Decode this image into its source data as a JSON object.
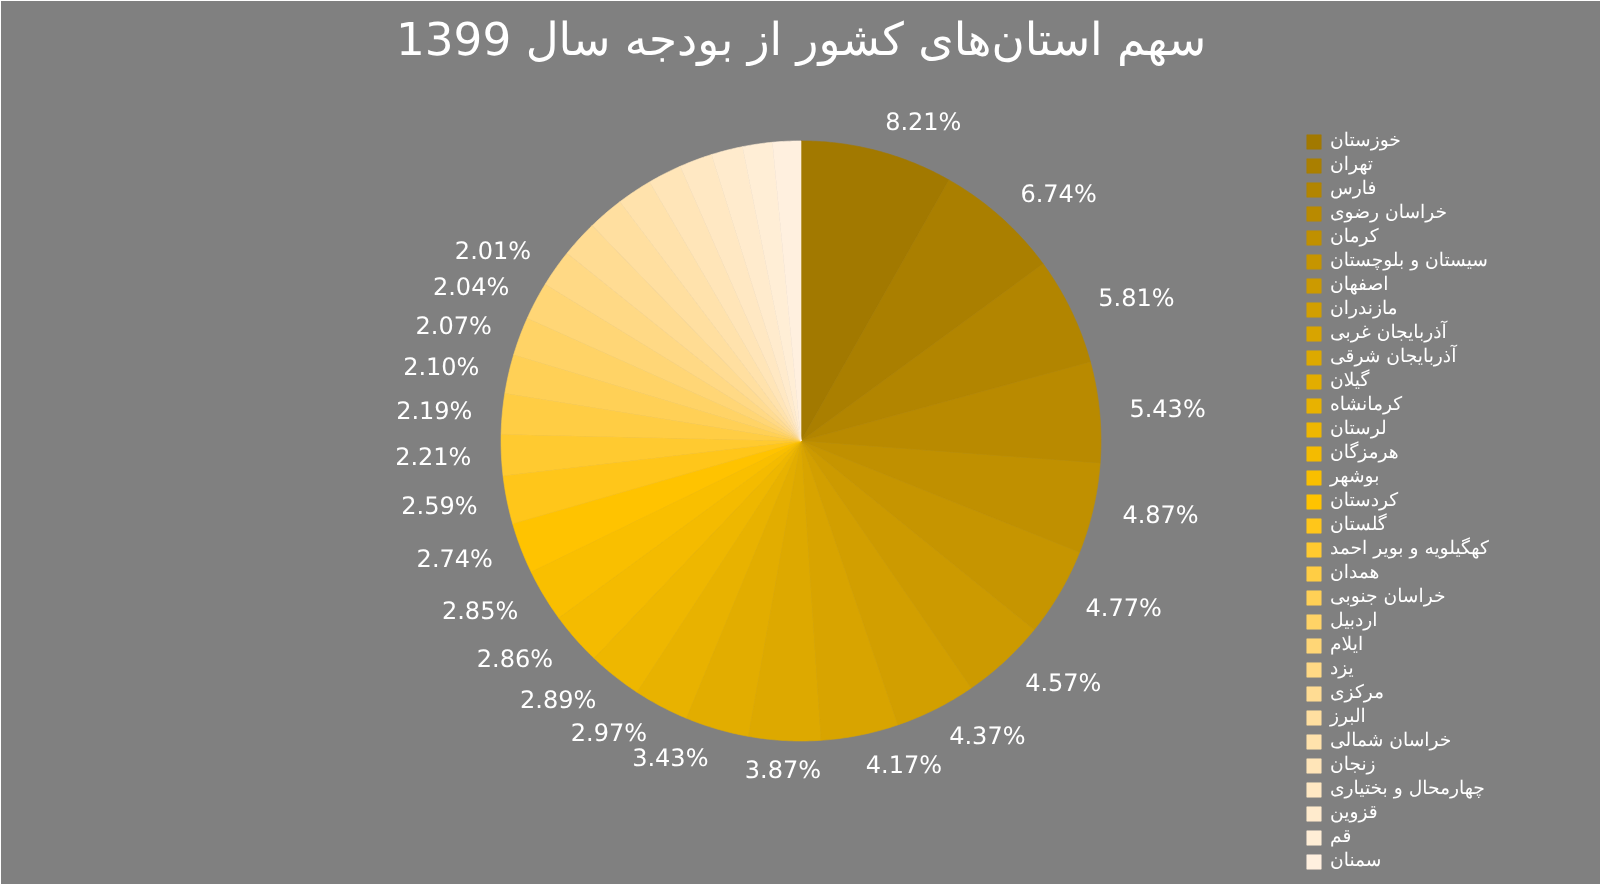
{
  "chart_data": {
    "type": "pie",
    "title": "سهم استان‌های کشور از بودجه سال 1399",
    "categories": [
      "خوزستان",
      "تهران",
      "فارس",
      "خراسان رضوی",
      "کرمان",
      "سیستان و بلوچستان",
      "اصفهان",
      "مازندران",
      "آذربایجان غربی",
      "آذربایجان شرقی",
      "گیلان",
      "کرمانشاه",
      "لرستان",
      "هرمزگان",
      "بوشهر",
      "کردستان",
      "گلستان",
      "کهگیلویه و بویر احمد",
      "همدان",
      "خراسان جنوبی",
      "اردبیل",
      "ایلام",
      "یزد",
      "مرکزی",
      "البرز",
      "خراسان شمالی",
      "زنجان",
      "چهارمحال و بختیاری",
      "قزوین",
      "قم",
      "سمنان"
    ],
    "values": [
      8.21,
      6.74,
      5.81,
      5.43,
      4.87,
      4.77,
      4.57,
      4.37,
      4.17,
      3.87,
      3.43,
      2.97,
      2.89,
      2.86,
      2.85,
      2.74,
      2.59,
      2.21,
      2.19,
      2.1,
      2.07,
      2.04,
      2.01,
      1.98,
      1.94,
      1.9,
      1.82,
      1.78,
      1.7,
      1.6,
      1.52
    ],
    "value_labels": [
      "8.21%",
      "6.74%",
      "5.81%",
      "5.43%",
      "4.87%",
      "4.77%",
      "4.57%",
      "4.37%",
      "4.17%",
      "3.87%",
      "3.43%",
      "2.97%",
      "2.89%",
      "2.86%",
      "2.85%",
      "2.74%",
      "2.59%",
      "2.21%",
      "2.19%",
      "2.10%",
      "2.07%",
      "2.04%",
      "2.01%",
      null,
      null,
      null,
      null,
      null,
      null,
      null,
      null
    ],
    "colors": [
      "#a27900",
      "#aa7f00",
      "#b28500",
      "#b98a00",
      "#c09000",
      "#c69500",
      "#cc9a00",
      "#d29f00",
      "#d8a400",
      "#dda900",
      "#e2ad00",
      "#e8b200",
      "#eeb700",
      "#f4bb00",
      "#f9bf00",
      "#ffc300",
      "#ffc61a",
      "#ffca30",
      "#ffcd44",
      "#ffd056",
      "#ffd366",
      "#ffd676",
      "#ffd985",
      "#ffdc93",
      "#ffdfa0",
      "#ffe2ac",
      "#ffe5b8",
      "#ffe8c3",
      "#ffebcd",
      "#ffeed6",
      "#fff0df"
    ],
    "legend": "right"
  }
}
